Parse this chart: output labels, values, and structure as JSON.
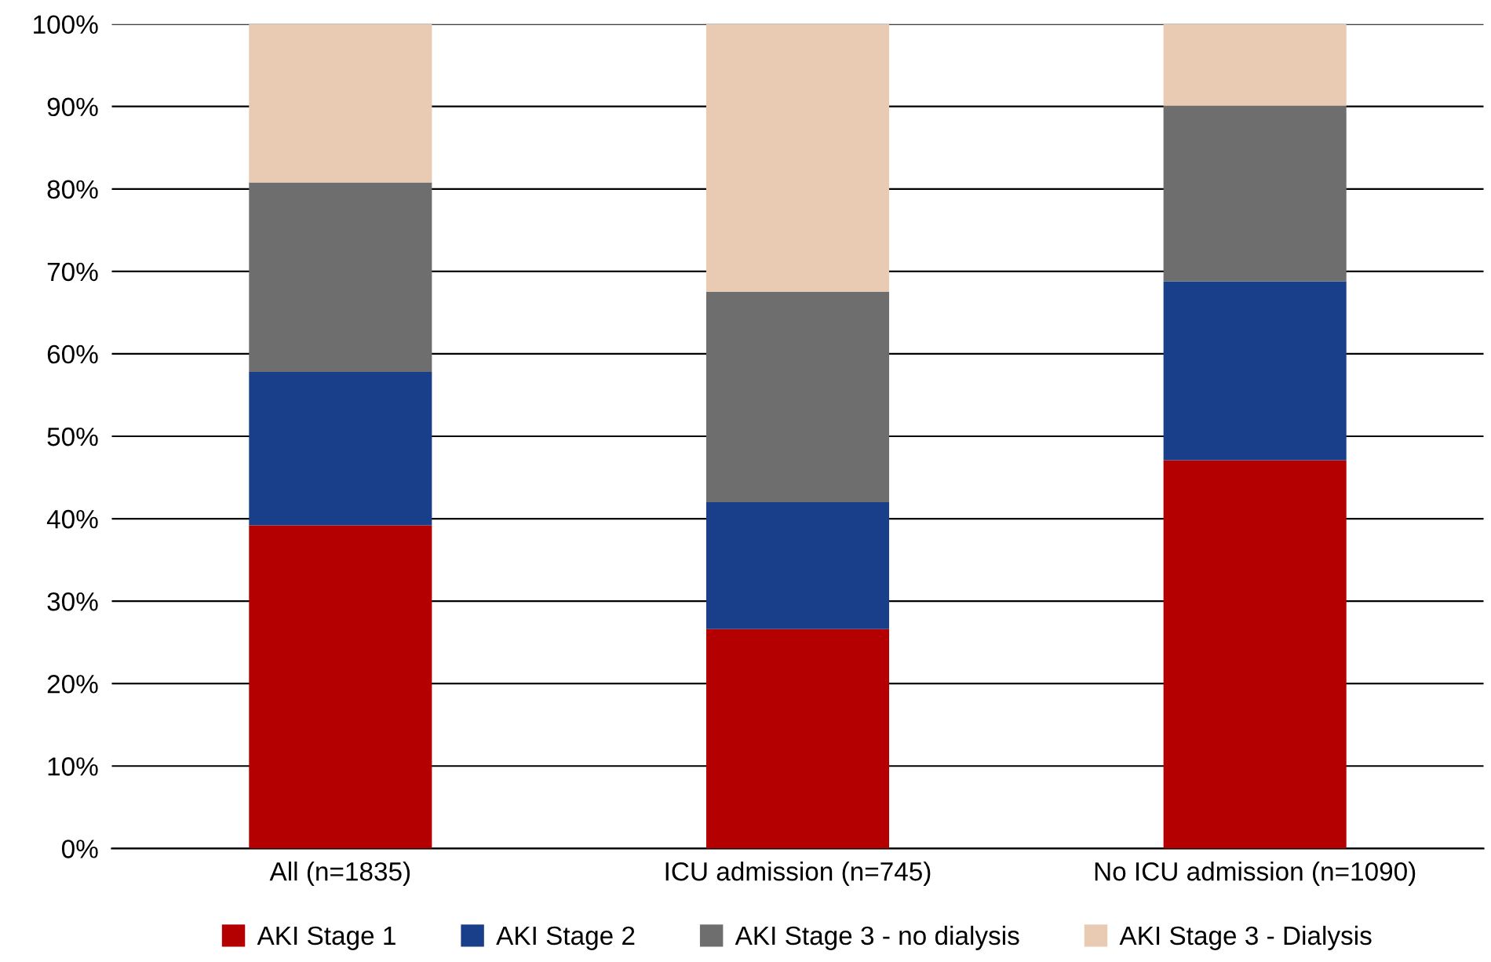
{
  "chart_data": {
    "type": "bar",
    "stacked": true,
    "categories": [
      "All (n=1835)",
      "ICU admission (n=745)",
      "No ICU admission (n=1090)"
    ],
    "series": [
      {
        "name": "AKI Stage 1",
        "color": "#b40000",
        "values": [
          39.2,
          26.6,
          47.1
        ]
      },
      {
        "name": "AKI Stage 2",
        "color": "#1a3f8a",
        "values": [
          18.6,
          15.4,
          21.7
        ]
      },
      {
        "name": "AKI Stage 3 - no dialysis",
        "color": "#6e6e6e",
        "values": [
          23.0,
          25.5,
          21.3
        ]
      },
      {
        "name": "AKI Stage 3 - Dialysis",
        "color": "#e9cab2",
        "values": [
          19.2,
          32.5,
          9.9
        ]
      }
    ],
    "ylim": [
      0,
      100
    ],
    "yticks": [
      {
        "value": 0,
        "label": "0%"
      },
      {
        "value": 10,
        "label": "10%"
      },
      {
        "value": 20,
        "label": "20%"
      },
      {
        "value": 30,
        "label": "30%"
      },
      {
        "value": 40,
        "label": "40%"
      },
      {
        "value": 50,
        "label": "50%"
      },
      {
        "value": 60,
        "label": "60%"
      },
      {
        "value": 70,
        "label": "70%"
      },
      {
        "value": 80,
        "label": "80%"
      },
      {
        "value": 90,
        "label": "90%"
      },
      {
        "value": 100,
        "label": "100%"
      }
    ],
    "grid": "y",
    "legend": "bottom"
  }
}
